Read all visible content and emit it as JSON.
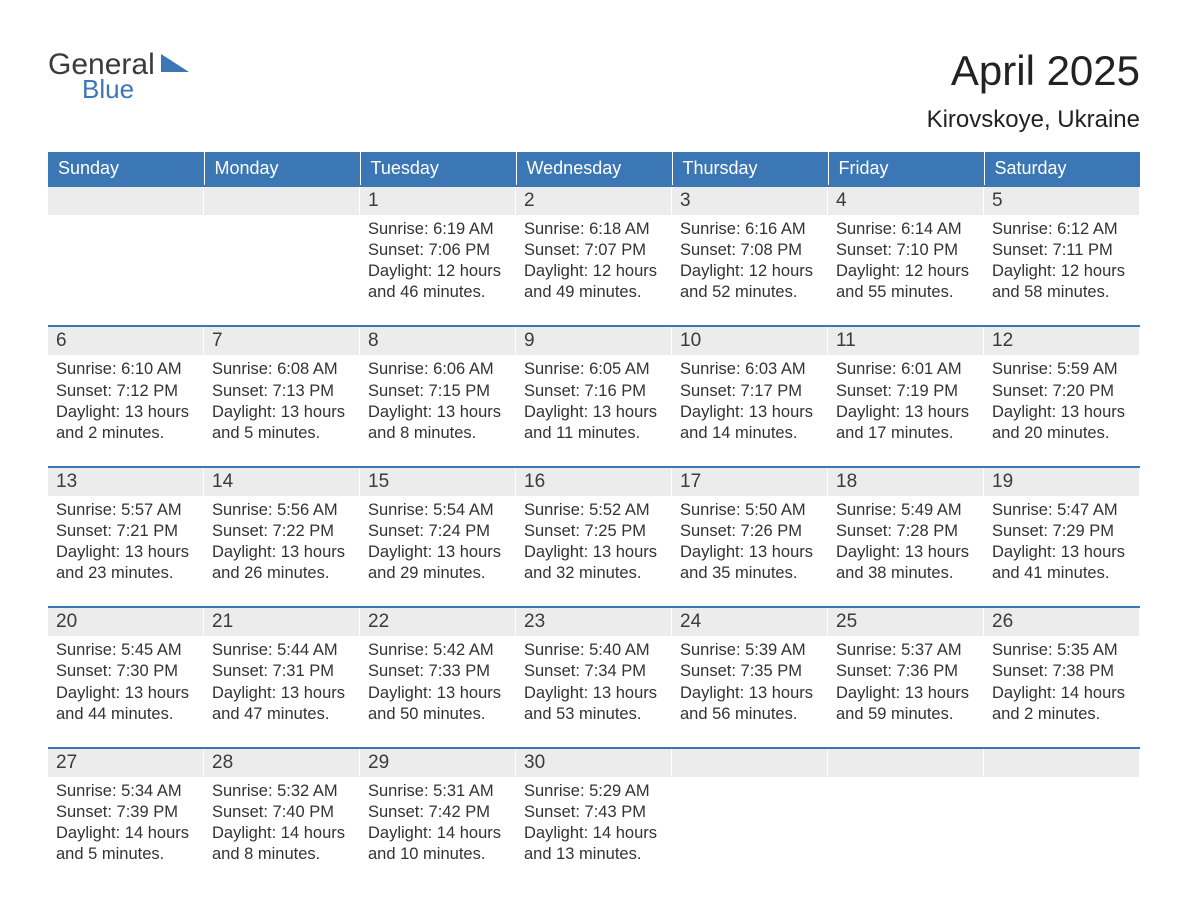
{
  "colors": {
    "header_bg": "#3b77b5",
    "header_text": "#ffffff",
    "daynum_bg": "#ececec",
    "body_text": "#333333",
    "logo_gray": "#3b3b3b",
    "logo_blue": "#3b77b5",
    "page_bg": "#ffffff"
  },
  "logo": {
    "line1": "General",
    "line2": "Blue"
  },
  "title": "April 2025",
  "subtitle": "Kirovskoye, Ukraine",
  "day_headers": [
    "Sunday",
    "Monday",
    "Tuesday",
    "Wednesday",
    "Thursday",
    "Friday",
    "Saturday"
  ],
  "weeks": [
    [
      null,
      null,
      {
        "n": "1",
        "sunrise": "Sunrise: 6:19 AM",
        "sunset": "Sunset: 7:06 PM",
        "daylight": "Daylight: 12 hours and 46 minutes."
      },
      {
        "n": "2",
        "sunrise": "Sunrise: 6:18 AM",
        "sunset": "Sunset: 7:07 PM",
        "daylight": "Daylight: 12 hours and 49 minutes."
      },
      {
        "n": "3",
        "sunrise": "Sunrise: 6:16 AM",
        "sunset": "Sunset: 7:08 PM",
        "daylight": "Daylight: 12 hours and 52 minutes."
      },
      {
        "n": "4",
        "sunrise": "Sunrise: 6:14 AM",
        "sunset": "Sunset: 7:10 PM",
        "daylight": "Daylight: 12 hours and 55 minutes."
      },
      {
        "n": "5",
        "sunrise": "Sunrise: 6:12 AM",
        "sunset": "Sunset: 7:11 PM",
        "daylight": "Daylight: 12 hours and 58 minutes."
      }
    ],
    [
      {
        "n": "6",
        "sunrise": "Sunrise: 6:10 AM",
        "sunset": "Sunset: 7:12 PM",
        "daylight": "Daylight: 13 hours and 2 minutes."
      },
      {
        "n": "7",
        "sunrise": "Sunrise: 6:08 AM",
        "sunset": "Sunset: 7:13 PM",
        "daylight": "Daylight: 13 hours and 5 minutes."
      },
      {
        "n": "8",
        "sunrise": "Sunrise: 6:06 AM",
        "sunset": "Sunset: 7:15 PM",
        "daylight": "Daylight: 13 hours and 8 minutes."
      },
      {
        "n": "9",
        "sunrise": "Sunrise: 6:05 AM",
        "sunset": "Sunset: 7:16 PM",
        "daylight": "Daylight: 13 hours and 11 minutes."
      },
      {
        "n": "10",
        "sunrise": "Sunrise: 6:03 AM",
        "sunset": "Sunset: 7:17 PM",
        "daylight": "Daylight: 13 hours and 14 minutes."
      },
      {
        "n": "11",
        "sunrise": "Sunrise: 6:01 AM",
        "sunset": "Sunset: 7:19 PM",
        "daylight": "Daylight: 13 hours and 17 minutes."
      },
      {
        "n": "12",
        "sunrise": "Sunrise: 5:59 AM",
        "sunset": "Sunset: 7:20 PM",
        "daylight": "Daylight: 13 hours and 20 minutes."
      }
    ],
    [
      {
        "n": "13",
        "sunrise": "Sunrise: 5:57 AM",
        "sunset": "Sunset: 7:21 PM",
        "daylight": "Daylight: 13 hours and 23 minutes."
      },
      {
        "n": "14",
        "sunrise": "Sunrise: 5:56 AM",
        "sunset": "Sunset: 7:22 PM",
        "daylight": "Daylight: 13 hours and 26 minutes."
      },
      {
        "n": "15",
        "sunrise": "Sunrise: 5:54 AM",
        "sunset": "Sunset: 7:24 PM",
        "daylight": "Daylight: 13 hours and 29 minutes."
      },
      {
        "n": "16",
        "sunrise": "Sunrise: 5:52 AM",
        "sunset": "Sunset: 7:25 PM",
        "daylight": "Daylight: 13 hours and 32 minutes."
      },
      {
        "n": "17",
        "sunrise": "Sunrise: 5:50 AM",
        "sunset": "Sunset: 7:26 PM",
        "daylight": "Daylight: 13 hours and 35 minutes."
      },
      {
        "n": "18",
        "sunrise": "Sunrise: 5:49 AM",
        "sunset": "Sunset: 7:28 PM",
        "daylight": "Daylight: 13 hours and 38 minutes."
      },
      {
        "n": "19",
        "sunrise": "Sunrise: 5:47 AM",
        "sunset": "Sunset: 7:29 PM",
        "daylight": "Daylight: 13 hours and 41 minutes."
      }
    ],
    [
      {
        "n": "20",
        "sunrise": "Sunrise: 5:45 AM",
        "sunset": "Sunset: 7:30 PM",
        "daylight": "Daylight: 13 hours and 44 minutes."
      },
      {
        "n": "21",
        "sunrise": "Sunrise: 5:44 AM",
        "sunset": "Sunset: 7:31 PM",
        "daylight": "Daylight: 13 hours and 47 minutes."
      },
      {
        "n": "22",
        "sunrise": "Sunrise: 5:42 AM",
        "sunset": "Sunset: 7:33 PM",
        "daylight": "Daylight: 13 hours and 50 minutes."
      },
      {
        "n": "23",
        "sunrise": "Sunrise: 5:40 AM",
        "sunset": "Sunset: 7:34 PM",
        "daylight": "Daylight: 13 hours and 53 minutes."
      },
      {
        "n": "24",
        "sunrise": "Sunrise: 5:39 AM",
        "sunset": "Sunset: 7:35 PM",
        "daylight": "Daylight: 13 hours and 56 minutes."
      },
      {
        "n": "25",
        "sunrise": "Sunrise: 5:37 AM",
        "sunset": "Sunset: 7:36 PM",
        "daylight": "Daylight: 13 hours and 59 minutes."
      },
      {
        "n": "26",
        "sunrise": "Sunrise: 5:35 AM",
        "sunset": "Sunset: 7:38 PM",
        "daylight": "Daylight: 14 hours and 2 minutes."
      }
    ],
    [
      {
        "n": "27",
        "sunrise": "Sunrise: 5:34 AM",
        "sunset": "Sunset: 7:39 PM",
        "daylight": "Daylight: 14 hours and 5 minutes."
      },
      {
        "n": "28",
        "sunrise": "Sunrise: 5:32 AM",
        "sunset": "Sunset: 7:40 PM",
        "daylight": "Daylight: 14 hours and 8 minutes."
      },
      {
        "n": "29",
        "sunrise": "Sunrise: 5:31 AM",
        "sunset": "Sunset: 7:42 PM",
        "daylight": "Daylight: 14 hours and 10 minutes."
      },
      {
        "n": "30",
        "sunrise": "Sunrise: 5:29 AM",
        "sunset": "Sunset: 7:43 PM",
        "daylight": "Daylight: 14 hours and 13 minutes."
      },
      null,
      null,
      null
    ]
  ]
}
